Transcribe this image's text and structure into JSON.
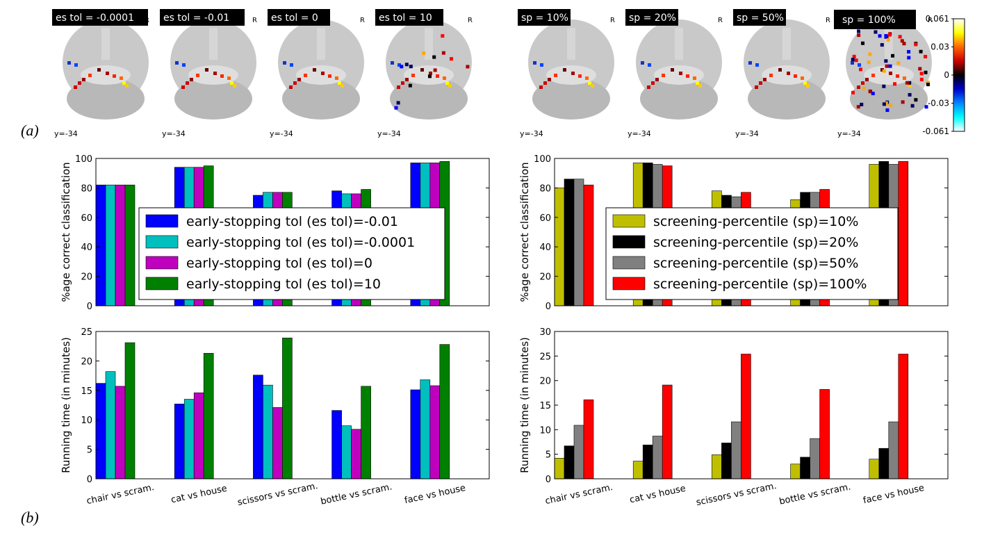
{
  "panel_labels": {
    "a": "(a)",
    "b": "(b)"
  },
  "brain_maps": {
    "coord_label": "y=-34",
    "orientation_label": "R",
    "titles": [
      "es tol = -0.0001",
      "es tol = -0.01",
      "es tol = 0",
      "es tol = 10",
      "sp = 10%",
      "sp = 20%",
      "sp = 50%",
      "sp = 100%"
    ],
    "colorbar": {
      "ticks": [
        "0.061",
        "0.03",
        "0",
        "-0.03",
        "-0.061"
      ],
      "colors": [
        "#ffffff",
        "#ffff00",
        "#ff6600",
        "#cc0000",
        "#000000",
        "#0000cc",
        "#0088ff",
        "#00ffff",
        "#ffffff"
      ]
    }
  },
  "chart_data": [
    {
      "type": "bar",
      "ylabel": "%age correct classification",
      "ylim": [
        0,
        100
      ],
      "yticks": [
        0,
        20,
        40,
        60,
        80,
        100
      ],
      "categories": [
        "chair vs scram.",
        "cat vs house",
        "scissors vs scram.",
        "bottle vs scram.",
        "face vs house"
      ],
      "show_category_labels": false,
      "legend_position": "center",
      "series": [
        {
          "name": "early-stopping tol (es tol)=-0.01",
          "color": "#0000ff",
          "values": [
            82,
            94,
            75,
            78,
            97
          ]
        },
        {
          "name": "early-stopping tol (es tol)=-0.0001",
          "color": "#00bfbf",
          "values": [
            82,
            94,
            77,
            76,
            97
          ]
        },
        {
          "name": "early-stopping tol (es tol)=0",
          "color": "#bf00bf",
          "values": [
            82,
            94,
            77,
            76,
            97
          ]
        },
        {
          "name": "early-stopping tol (es tol)=10",
          "color": "#008000",
          "values": [
            82,
            95,
            77,
            79,
            98
          ]
        }
      ]
    },
    {
      "type": "bar",
      "ylabel": "%age correct classification",
      "ylim": [
        0,
        100
      ],
      "yticks": [
        0,
        20,
        40,
        60,
        80,
        100
      ],
      "categories": [
        "chair vs scram.",
        "cat vs house",
        "scissors vs scram.",
        "bottle vs scram.",
        "face vs house"
      ],
      "show_category_labels": false,
      "legend_position": "center-right",
      "series": [
        {
          "name": "screening-percentile (sp)=10%",
          "color": "#bfbf00",
          "values": [
            80,
            97,
            78,
            72,
            96
          ]
        },
        {
          "name": "screening-percentile (sp)=20%",
          "color": "#000000",
          "values": [
            86,
            97,
            75,
            77,
            98
          ]
        },
        {
          "name": "screening-percentile (sp)=50%",
          "color": "#808080",
          "values": [
            86,
            96,
            74,
            77,
            96
          ]
        },
        {
          "name": "screening-percentile (sp)=100%",
          "color": "#ff0000",
          "values": [
            82,
            95,
            77,
            79,
            98
          ]
        }
      ]
    },
    {
      "type": "bar",
      "ylabel": "Running time (in minutes)",
      "ylim": [
        0,
        25
      ],
      "yticks": [
        0,
        5,
        10,
        15,
        20,
        25
      ],
      "categories": [
        "chair vs scram.",
        "cat vs house",
        "scissors vs scram.",
        "bottle vs scram.",
        "face vs house"
      ],
      "show_category_labels": true,
      "series": [
        {
          "color": "#0000ff",
          "values": [
            16.2,
            12.7,
            17.6,
            11.6,
            15.1
          ]
        },
        {
          "color": "#00bfbf",
          "values": [
            18.2,
            13.5,
            15.9,
            9.0,
            16.8
          ]
        },
        {
          "color": "#bf00bf",
          "values": [
            15.7,
            14.6,
            12.1,
            8.4,
            15.8
          ]
        },
        {
          "color": "#008000",
          "values": [
            23.1,
            21.3,
            23.9,
            15.7,
            22.8
          ]
        }
      ]
    },
    {
      "type": "bar",
      "ylabel": "Running time (in minutes)",
      "ylim": [
        0,
        30
      ],
      "yticks": [
        0,
        5,
        10,
        15,
        20,
        25,
        30
      ],
      "categories": [
        "chair vs scram.",
        "cat vs house",
        "scissors vs scram.",
        "bottle vs scram.",
        "face vs house"
      ],
      "show_category_labels": true,
      "series": [
        {
          "color": "#bfbf00",
          "values": [
            4.2,
            3.6,
            4.9,
            3.0,
            4.0
          ]
        },
        {
          "color": "#000000",
          "values": [
            6.7,
            6.9,
            7.3,
            4.4,
            6.2
          ]
        },
        {
          "color": "#808080",
          "values": [
            10.9,
            8.7,
            11.6,
            8.2,
            11.6
          ]
        },
        {
          "color": "#ff0000",
          "values": [
            16.1,
            19.1,
            25.4,
            18.2,
            25.4
          ]
        }
      ]
    }
  ]
}
